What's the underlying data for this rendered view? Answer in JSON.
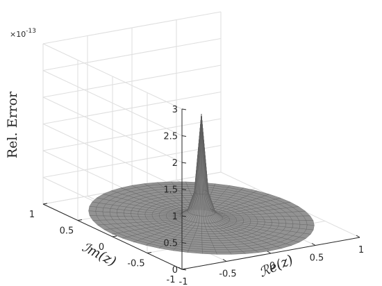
{
  "chart_data": {
    "type": "surface",
    "title": "",
    "zlabel": "Rel. Error",
    "xlabel": "ℛe(z)",
    "ylabel": "ℐm(z)",
    "z_exponent": "×10",
    "z_exponent_power": "-13",
    "xlim": [
      -1,
      1
    ],
    "ylim": [
      -1,
      1
    ],
    "zlim": [
      0,
      3
    ],
    "x_ticks": [
      "-1",
      "-0.5",
      "0",
      "0.5",
      "1"
    ],
    "y_ticks": [
      "-1",
      "-0.5",
      "0",
      "0.5",
      "1"
    ],
    "z_ticks": [
      "0",
      "0.5",
      "1",
      "1.5",
      "2",
      "2.5",
      "3"
    ],
    "domain": "unit disk |z| ≤ 1",
    "surface_color": "#8a8a8a",
    "grid": true,
    "peak": {
      "x": 0,
      "y": 0,
      "z": 2.0
    },
    "background_level": 0.05
  }
}
